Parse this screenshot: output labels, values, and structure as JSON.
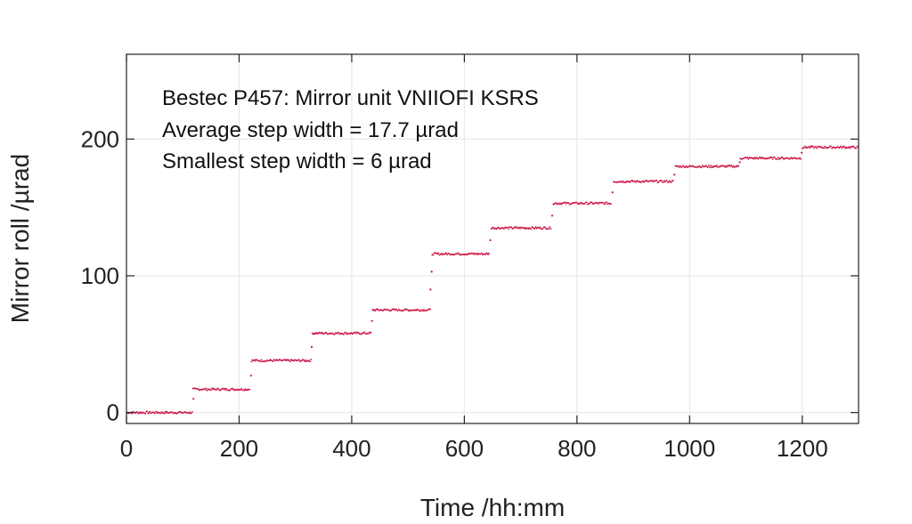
{
  "chart_data": {
    "type": "scatter",
    "xlabel": "Time /hh:mm",
    "ylabel": "Mirror roll /µrad",
    "xlim": [
      0,
      1300
    ],
    "ylim": [
      -8,
      262
    ],
    "x_ticks": [
      0,
      200,
      400,
      600,
      800,
      1000,
      1200
    ],
    "y_ticks": [
      0,
      100,
      200
    ],
    "grid": true,
    "annotations": [
      "Bestec P457: Mirror unit VNIIOFI KSRS",
      "Average step width = 17.7 µrad",
      "Smallest step width = 6 µrad"
    ],
    "marker_color": "#cc1144",
    "series": [
      {
        "plateaus": [
          {
            "x_start": 0,
            "x_end": 118,
            "y": 0
          },
          {
            "x_start": 118,
            "x_end": 220,
            "y": 17
          },
          {
            "x_start": 222,
            "x_end": 328,
            "y": 38
          },
          {
            "x_start": 330,
            "x_end": 435,
            "y": 58
          },
          {
            "x_start": 437,
            "x_end": 540,
            "y": 75
          },
          {
            "x_start": 543,
            "x_end": 645,
            "y": 116
          },
          {
            "x_start": 648,
            "x_end": 755,
            "y": 135
          },
          {
            "x_start": 758,
            "x_end": 862,
            "y": 153
          },
          {
            "x_start": 865,
            "x_end": 972,
            "y": 169
          },
          {
            "x_start": 975,
            "x_end": 1088,
            "y": 180
          },
          {
            "x_start": 1090,
            "x_end": 1198,
            "y": 186
          },
          {
            "x_start": 1200,
            "x_end": 1300,
            "y": 194
          }
        ],
        "transition_points": [
          {
            "x": 119,
            "y": 10
          },
          {
            "x": 221,
            "y": 27
          },
          {
            "x": 329,
            "y": 48
          },
          {
            "x": 436,
            "y": 67
          },
          {
            "x": 540,
            "y": 90
          },
          {
            "x": 542,
            "y": 103
          },
          {
            "x": 646,
            "y": 126
          },
          {
            "x": 756,
            "y": 144
          },
          {
            "x": 863,
            "y": 161
          },
          {
            "x": 973,
            "y": 174
          },
          {
            "x": 1089,
            "y": 183
          },
          {
            "x": 1199,
            "y": 190
          }
        ]
      }
    ]
  }
}
